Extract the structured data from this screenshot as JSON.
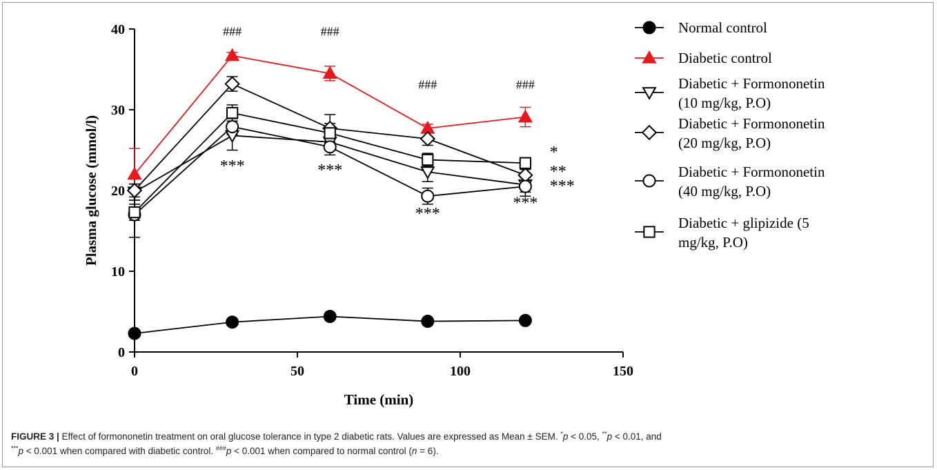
{
  "chart_data": {
    "type": "line",
    "xlabel": "Time (min)",
    "ylabel": "Plasma glucose (mmol/l)",
    "xlim": [
      0,
      150
    ],
    "ylim": [
      0,
      40
    ],
    "xticks": [
      0,
      50,
      100,
      150
    ],
    "yticks": [
      0,
      10,
      20,
      30,
      40
    ],
    "grid": false,
    "legend_position": "right",
    "x": [
      0,
      30,
      60,
      90,
      120
    ],
    "series": [
      {
        "name": "Normal control",
        "marker": "filled-circle",
        "color": "#000000",
        "values": [
          2.3,
          3.7,
          4.4,
          3.8,
          3.9
        ],
        "errors": [
          0.2,
          0.2,
          0.2,
          0.2,
          0.2
        ]
      },
      {
        "name": "Diabetic control",
        "marker": "filled-triangle-up",
        "color": "#e8191c",
        "values": [
          22.0,
          36.7,
          34.5,
          27.7,
          29.1
        ],
        "errors": [
          3.2,
          0.4,
          0.9,
          0.5,
          1.2
        ]
      },
      {
        "name": [
          "Diabetic + Formononetin",
          "(10 mg/kg, P.O)"
        ],
        "marker": "open-triangle-down",
        "color": "#000000",
        "values": [
          19.8,
          26.8,
          26.0,
          22.3,
          20.7
        ],
        "errors": [
          1.0,
          1.8,
          1.0,
          1.2,
          0.9
        ]
      },
      {
        "name": [
          "Diabetic + Formononetin",
          "(20 mg/kg, P.O)"
        ],
        "marker": "open-diamond",
        "color": "#000000",
        "values": [
          20.0,
          33.2,
          27.7,
          26.4,
          21.9
        ],
        "errors": [
          0.8,
          0.9,
          1.7,
          0.8,
          0.7
        ]
      },
      {
        "name": [
          "Diabetic + Formononetin",
          "(40 mg/kg, P.O)"
        ],
        "marker": "open-circle",
        "color": "#000000",
        "values": [
          17.0,
          27.9,
          25.4,
          19.3,
          20.5
        ],
        "errors": [
          2.8,
          1.0,
          1.0,
          1.0,
          1.2
        ]
      },
      {
        "name": [
          "Diabetic + glipizide (5",
          "mg/kg, P.O)"
        ],
        "marker": "open-square",
        "color": "#000000",
        "values": [
          17.3,
          29.6,
          27.1,
          23.8,
          23.4
        ],
        "errors": [
          1.0,
          1.0,
          1.2,
          0.8,
          0.5
        ]
      }
    ],
    "annotations": [
      {
        "text": "###",
        "x": 30,
        "y": 39.2
      },
      {
        "text": "###",
        "x": 60,
        "y": 39.2
      },
      {
        "text": "###",
        "x": 90,
        "y": 32.6
      },
      {
        "text": "###",
        "x": 120,
        "y": 32.6
      },
      {
        "text": "***",
        "x": 30,
        "y": 22.4
      },
      {
        "text": "***",
        "x": 60,
        "y": 21.9
      },
      {
        "text": "***",
        "x": 90,
        "y": 16.5
      },
      {
        "text": "***",
        "x": 120,
        "y": 17.8
      },
      {
        "text": "*",
        "x": 127.5,
        "y": 24.1
      },
      {
        "text": "**",
        "x": 127.5,
        "y": 21.7
      },
      {
        "text": "***",
        "x": 127.5,
        "y": 19.9
      }
    ]
  },
  "caption": {
    "label": "FIGURE 3 |",
    "text1": " Effect of formononetin treatment on oral glucose tolerance in type 2 diabetic rats. Values are expressed as Mean ± SEM. ",
    "sup1": "*",
    "p1": "p",
    "text2": " < 0.05, ",
    "sup2": "**",
    "p2": "p",
    "text3": " < 0.01, and",
    "sup3": "***",
    "p3": "p",
    "text4": " < 0.001 when compared with diabetic control. ",
    "sup4": "###",
    "p4": "p",
    "text5": " < 0.001 when compared to normal control (",
    "n": "n",
    "text6": " = 6)."
  }
}
